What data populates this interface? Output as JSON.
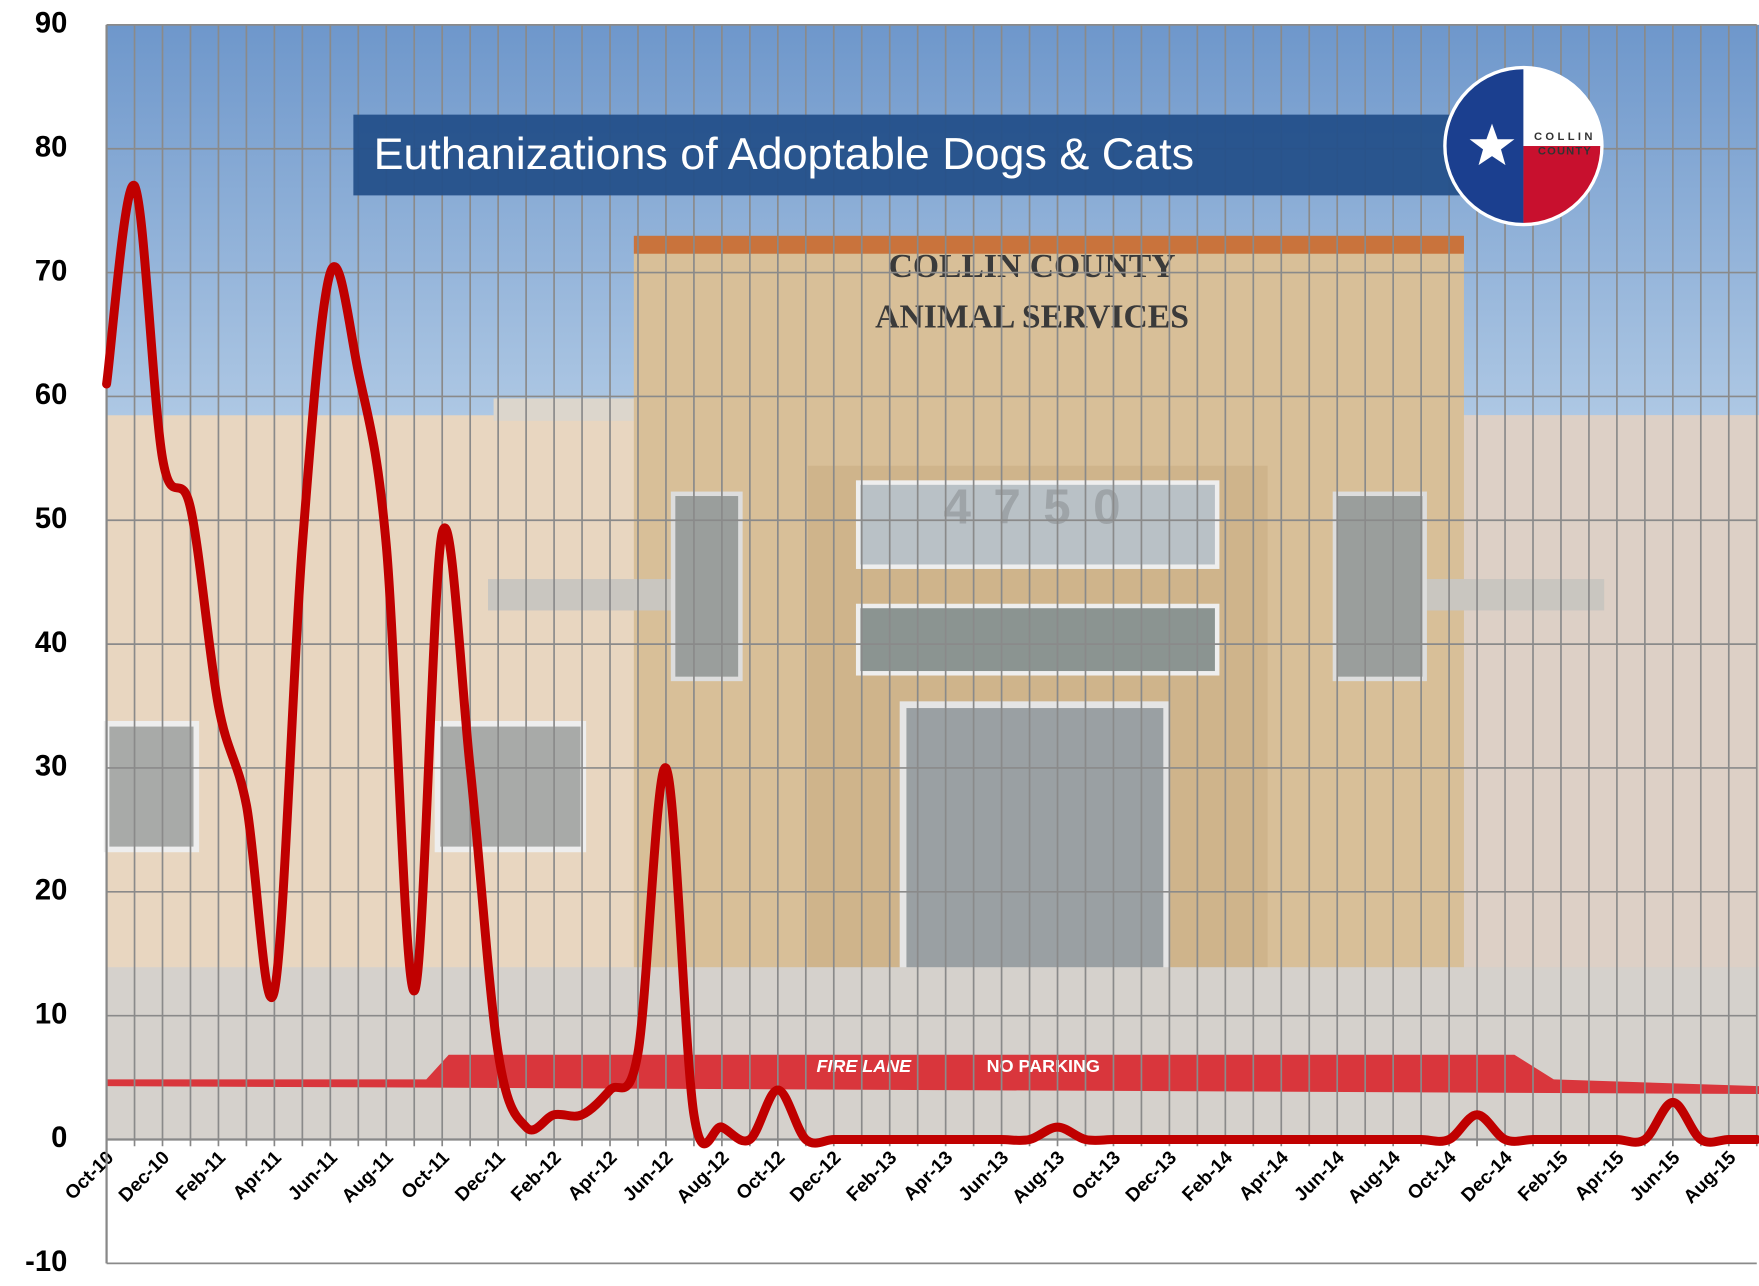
{
  "chart_data": {
    "type": "line",
    "title": "Euthanizations of Adoptable Dogs & Cats",
    "logo_text": [
      "COLLIN",
      "COUNTY"
    ],
    "background_texts": [
      "COLLIN COUNTY",
      "ANIMAL SERVICES",
      "4750",
      "FIRE LANE",
      "NO PARKING"
    ],
    "categories": [
      "Oct-10",
      null,
      "Dec-10",
      null,
      "Feb-11",
      null,
      "Apr-11",
      null,
      "Jun-11",
      null,
      "Aug-11",
      null,
      "Oct-11",
      null,
      "Dec-11",
      null,
      "Feb-12",
      null,
      "Apr-12",
      null,
      "Jun-12",
      null,
      "Aug-12",
      null,
      "Oct-12",
      null,
      "Dec-12",
      null,
      "Feb-13",
      null,
      "Apr-13",
      null,
      "Jun-13",
      null,
      "Aug-13",
      null,
      "Oct-13",
      null,
      "Dec-13",
      null,
      "Feb-14",
      null,
      "Apr-14",
      null,
      "Jun-14",
      null,
      "Aug-14",
      null,
      "Oct-14",
      null,
      "Dec-14",
      null,
      "Feb-15",
      null,
      "Apr-15",
      null,
      "Jun-15",
      null,
      "Aug-15",
      null
    ],
    "series": [
      {
        "color": "#c00000",
        "values": [
          61,
          77,
          55,
          51,
          35,
          27,
          12,
          48,
          70,
          62,
          48,
          12,
          49,
          30,
          7,
          1,
          2,
          2,
          4,
          7,
          30,
          2,
          1,
          0,
          4,
          0,
          0,
          0,
          0,
          0,
          0,
          0,
          0,
          0,
          1,
          0,
          0,
          0,
          0,
          0,
          0,
          0,
          0,
          0,
          0,
          0,
          0,
          0,
          0,
          2,
          0,
          0,
          0,
          0,
          0,
          0,
          3,
          0,
          0,
          0
        ]
      }
    ],
    "ylim": [
      -10,
      90
    ],
    "yticks": [
      -10,
      0,
      10,
      20,
      30,
      40,
      50,
      60,
      70,
      80,
      90
    ],
    "grid": true
  }
}
